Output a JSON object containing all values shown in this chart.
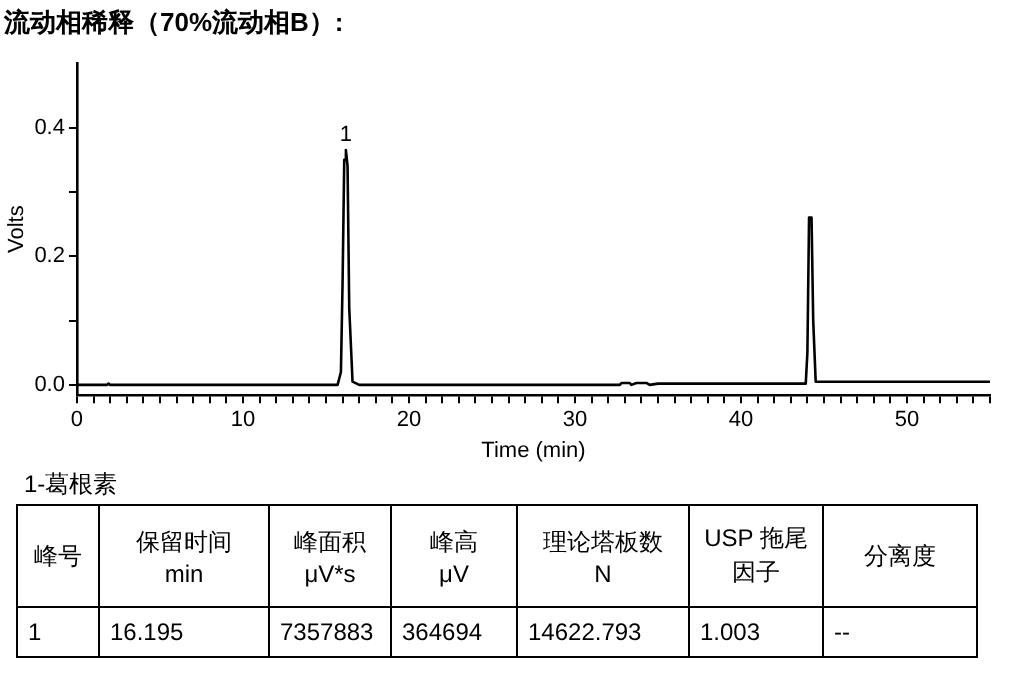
{
  "chart_data": {
    "type": "line",
    "title": "流动相稀释（70%流动相B）:",
    "xlabel": "Time (min)",
    "ylabel": "Volts",
    "series": [
      {
        "color": "#000000",
        "x": [
          0,
          1.8,
          1.9,
          2.0,
          15.7,
          15.9,
          16.0,
          16.1,
          16.2,
          16.3,
          16.4,
          16.6,
          17,
          32.7,
          32.8,
          33.3,
          33.4,
          33.7,
          34.3,
          34.5,
          35,
          43.9,
          44.0,
          44.1,
          44.25,
          44.35,
          44.5,
          55
        ],
        "values": [
          0,
          0,
          0.002,
          0,
          0,
          0.02,
          0.16,
          0.35,
          0.365,
          0.34,
          0.12,
          0.005,
          0,
          0,
          0.003,
          0.003,
          0,
          0.003,
          0.003,
          0,
          0.002,
          0.002,
          0.05,
          0.26,
          0.26,
          0.1,
          0.005,
          0.005
        ]
      }
    ],
    "xlim": [
      0,
      55
    ],
    "ylim": [
      -0.016,
      0.5
    ],
    "xticks": [
      0,
      {
        "value": 1,
        "label": null
      },
      {
        "value": 2,
        "label": null
      },
      {
        "value": 3,
        "label": null
      },
      {
        "value": 4,
        "label": null
      },
      {
        "value": 5,
        "label": null
      },
      {
        "value": 6,
        "label": null
      },
      {
        "value": 7,
        "label": null
      },
      {
        "value": 8,
        "label": null
      },
      {
        "value": 9,
        "label": null
      },
      10,
      {
        "value": 11,
        "label": null
      },
      {
        "value": 12,
        "label": null
      },
      {
        "value": 13,
        "label": null
      },
      {
        "value": 14,
        "label": null
      },
      {
        "value": 15,
        "label": null
      },
      {
        "value": 16,
        "label": null
      },
      {
        "value": 17,
        "label": null
      },
      {
        "value": 18,
        "label": null
      },
      {
        "value": 19,
        "label": null
      },
      20,
      {
        "value": 21,
        "label": null
      },
      {
        "value": 22,
        "label": null
      },
      {
        "value": 23,
        "label": null
      },
      {
        "value": 24,
        "label": null
      },
      {
        "value": 25,
        "label": null
      },
      {
        "value": 26,
        "label": null
      },
      {
        "value": 27,
        "label": null
      },
      {
        "value": 28,
        "label": null
      },
      {
        "value": 29,
        "label": null
      },
      30,
      {
        "value": 31,
        "label": null
      },
      {
        "value": 32,
        "label": null
      },
      {
        "value": 33,
        "label": null
      },
      {
        "value": 34,
        "label": null
      },
      {
        "value": 35,
        "label": null
      },
      {
        "value": 36,
        "label": null
      },
      {
        "value": 37,
        "label": null
      },
      {
        "value": 38,
        "label": null
      },
      {
        "value": 39,
        "label": null
      },
      40,
      {
        "value": 41,
        "label": null
      },
      {
        "value": 42,
        "label": null
      },
      {
        "value": 43,
        "label": null
      },
      {
        "value": 44,
        "label": null
      },
      {
        "value": 45,
        "label": null
      },
      {
        "value": 46,
        "label": null
      },
      {
        "value": 47,
        "label": null
      },
      {
        "value": 48,
        "label": null
      },
      {
        "value": 49,
        "label": null
      },
      50,
      {
        "value": 51,
        "label": null
      },
      {
        "value": 52,
        "label": null
      },
      {
        "value": 53,
        "label": null
      },
      {
        "value": 54,
        "label": null
      },
      {
        "value": 55,
        "label": null
      }
    ],
    "yticks": [
      {
        "value": 0,
        "label": "0.0"
      },
      {
        "value": 0.1,
        "label": null
      },
      {
        "value": 0.2,
        "label": "0.2"
      },
      {
        "value": 0.3,
        "label": null
      },
      {
        "value": 0.4,
        "label": "0.4"
      }
    ],
    "grid": false,
    "legend": false,
    "marker": "none",
    "line_style": "solid",
    "annotations": [
      {
        "text": "1",
        "x": 16.195,
        "y": 0.365
      },
      "1-葛根素",
      "峰号",
      "保留时间\nmin",
      "峰面积\nμV*s",
      "峰高\nμV",
      "理论塔板数\nN",
      "USP 拖尾因子",
      "分离度",
      "1",
      "16.195",
      "7357883",
      "364694",
      "14622.793",
      "1.003",
      "--"
    ]
  }
}
